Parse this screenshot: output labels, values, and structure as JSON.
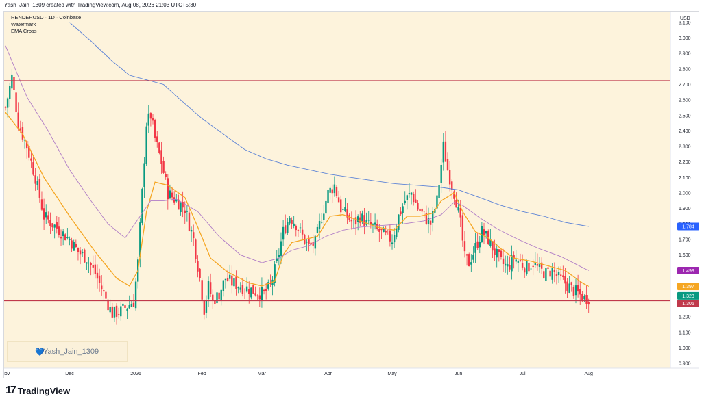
{
  "header": {
    "created_line": "Yash_Jain_1309 created with TradingView.com, Aug 08, 2026 21:03 UTC+5:30"
  },
  "legend": {
    "symbol_line": "RENDERUSD · 1D · Coinbase",
    "watermark_label": "Watermark",
    "indicator_label": "EMA Cross"
  },
  "badge": {
    "heart_icon": "heart-icon",
    "text": "Yash_Jain_1309"
  },
  "footer": {
    "logo_icon": "tradingview-logo-icon",
    "brand": "TradingView"
  },
  "colors": {
    "background": "#fdf3dc",
    "up": "#089981",
    "down": "#f23645",
    "ema_fast": "#f5a623",
    "ema_mid": "#b07cc6",
    "ema_slow": "#5b82d6",
    "hline": "#c0394b"
  },
  "chart_data": {
    "type": "candlestick",
    "currency_label": "USD",
    "ylim": [
      0.87,
      3.17
    ],
    "y_ticks": [
      "3.100",
      "3.000",
      "2.900",
      "2.800",
      "2.700",
      "2.600",
      "2.500",
      "2.400",
      "2.300",
      "2.200",
      "2.100",
      "2.000",
      "1.900",
      "1.800",
      "1.700",
      "1.600",
      "1.500",
      "1.400",
      "1.300",
      "1.200",
      "1.100",
      "1.000",
      "0.900"
    ],
    "x_ticks": [
      {
        "label": "Nov",
        "day": 0
      },
      {
        "label": "Dec",
        "day": 30
      },
      {
        "label": "2026",
        "day": 61
      },
      {
        "label": "Feb",
        "day": 92
      },
      {
        "label": "Mar",
        "day": 120
      },
      {
        "label": "Apr",
        "day": 151
      },
      {
        "label": "May",
        "day": 181
      },
      {
        "label": "Jun",
        "day": 212
      },
      {
        "label": "Jul",
        "day": 242
      },
      {
        "label": "Aug",
        "day": 273
      }
    ],
    "horizontal_lines": [
      {
        "value": 2.724,
        "label": "2.724",
        "color": "#c0394b"
      },
      {
        "value": 1.305,
        "label": "1.305",
        "color": "#c0394b"
      }
    ],
    "price_tags": [
      {
        "value": 1.784,
        "label": "1.784",
        "color": "#2962ff"
      },
      {
        "value": 1.499,
        "label": "1.499",
        "color": "#9c27b0"
      },
      {
        "value": 1.397,
        "label": "1.397",
        "color": "#f5a623"
      },
      {
        "value": 1.323,
        "label": "1.323",
        "color": "#089981"
      },
      {
        "value": 1.305,
        "label": "1.305",
        "color": "#c0394b"
      }
    ],
    "close_keypoints": [
      [
        0,
        2.55
      ],
      [
        3,
        2.75
      ],
      [
        6,
        2.45
      ],
      [
        10,
        2.3
      ],
      [
        14,
        2.1
      ],
      [
        18,
        1.85
      ],
      [
        22,
        1.8
      ],
      [
        26,
        1.75
      ],
      [
        30,
        1.7
      ],
      [
        34,
        1.62
      ],
      [
        38,
        1.58
      ],
      [
        42,
        1.48
      ],
      [
        46,
        1.35
      ],
      [
        50,
        1.22
      ],
      [
        54,
        1.24
      ],
      [
        58,
        1.28
      ],
      [
        60,
        1.3
      ],
      [
        62,
        1.55
      ],
      [
        64,
        2.0
      ],
      [
        66,
        2.45
      ],
      [
        68,
        2.5
      ],
      [
        70,
        2.35
      ],
      [
        73,
        2.2
      ],
      [
        76,
        2.0
      ],
      [
        80,
        1.95
      ],
      [
        84,
        1.9
      ],
      [
        88,
        1.7
      ],
      [
        91,
        1.45
      ],
      [
        93,
        1.25
      ],
      [
        95,
        1.4
      ],
      [
        97,
        1.3
      ],
      [
        100,
        1.35
      ],
      [
        103,
        1.45
      ],
      [
        106,
        1.42
      ],
      [
        110,
        1.4
      ],
      [
        114,
        1.38
      ],
      [
        118,
        1.36
      ],
      [
        121,
        1.35
      ],
      [
        124,
        1.4
      ],
      [
        127,
        1.55
      ],
      [
        130,
        1.75
      ],
      [
        133,
        1.85
      ],
      [
        136,
        1.8
      ],
      [
        139,
        1.72
      ],
      [
        142,
        1.65
      ],
      [
        145,
        1.68
      ],
      [
        148,
        1.85
      ],
      [
        151,
        2.0
      ],
      [
        154,
        2.05
      ],
      [
        157,
        1.9
      ],
      [
        160,
        1.85
      ],
      [
        163,
        1.8
      ],
      [
        166,
        1.85
      ],
      [
        169,
        1.8
      ],
      [
        172,
        1.78
      ],
      [
        175,
        1.75
      ],
      [
        178,
        1.72
      ],
      [
        181,
        1.7
      ],
      [
        184,
        1.85
      ],
      [
        187,
        1.95
      ],
      [
        190,
        2.0
      ],
      [
        193,
        1.9
      ],
      [
        196,
        1.85
      ],
      [
        199,
        1.8
      ],
      [
        202,
        1.95
      ],
      [
        205,
        2.3
      ],
      [
        207,
        2.15
      ],
      [
        209,
        2.05
      ],
      [
        211,
        1.95
      ],
      [
        213,
        1.8
      ],
      [
        215,
        1.58
      ],
      [
        217,
        1.55
      ],
      [
        220,
        1.65
      ],
      [
        223,
        1.75
      ],
      [
        226,
        1.7
      ],
      [
        229,
        1.62
      ],
      [
        232,
        1.55
      ],
      [
        235,
        1.52
      ],
      [
        238,
        1.58
      ],
      [
        241,
        1.55
      ],
      [
        244,
        1.52
      ],
      [
        247,
        1.55
      ],
      [
        250,
        1.5
      ],
      [
        253,
        1.48
      ],
      [
        256,
        1.5
      ],
      [
        259,
        1.45
      ],
      [
        262,
        1.42
      ],
      [
        265,
        1.38
      ],
      [
        268,
        1.35
      ],
      [
        271,
        1.32
      ],
      [
        273,
        1.323
      ]
    ],
    "series": [
      {
        "name": "EMA fast",
        "color": "#f5a623",
        "points": [
          [
            0,
            2.52
          ],
          [
            8,
            2.38
          ],
          [
            18,
            2.1
          ],
          [
            30,
            1.85
          ],
          [
            42,
            1.62
          ],
          [
            52,
            1.45
          ],
          [
            58,
            1.4
          ],
          [
            62,
            1.5
          ],
          [
            66,
            1.88
          ],
          [
            70,
            2.07
          ],
          [
            76,
            2.05
          ],
          [
            84,
            1.97
          ],
          [
            90,
            1.78
          ],
          [
            96,
            1.58
          ],
          [
            104,
            1.49
          ],
          [
            114,
            1.42
          ],
          [
            120,
            1.4
          ],
          [
            126,
            1.43
          ],
          [
            130,
            1.6
          ],
          [
            134,
            1.68
          ],
          [
            140,
            1.7
          ],
          [
            146,
            1.72
          ],
          [
            152,
            1.85
          ],
          [
            158,
            1.86
          ],
          [
            166,
            1.82
          ],
          [
            174,
            1.78
          ],
          [
            182,
            1.76
          ],
          [
            188,
            1.85
          ],
          [
            194,
            1.85
          ],
          [
            200,
            1.87
          ],
          [
            204,
            1.95
          ],
          [
            210,
            2.0
          ],
          [
            214,
            1.88
          ],
          [
            220,
            1.75
          ],
          [
            226,
            1.71
          ],
          [
            232,
            1.64
          ],
          [
            238,
            1.58
          ],
          [
            246,
            1.56
          ],
          [
            254,
            1.53
          ],
          [
            262,
            1.5
          ],
          [
            270,
            1.42
          ],
          [
            273,
            1.397
          ]
        ]
      },
      {
        "name": "EMA mid",
        "color": "#b07cc6",
        "points": [
          [
            0,
            2.95
          ],
          [
            10,
            2.62
          ],
          [
            20,
            2.4
          ],
          [
            30,
            2.15
          ],
          [
            40,
            1.95
          ],
          [
            48,
            1.8
          ],
          [
            56,
            1.71
          ],
          [
            62,
            1.83
          ],
          [
            68,
            1.95
          ],
          [
            74,
            1.95
          ],
          [
            80,
            1.96
          ],
          [
            90,
            1.88
          ],
          [
            100,
            1.72
          ],
          [
            110,
            1.6
          ],
          [
            120,
            1.55
          ],
          [
            128,
            1.58
          ],
          [
            134,
            1.63
          ],
          [
            142,
            1.66
          ],
          [
            150,
            1.72
          ],
          [
            158,
            1.76
          ],
          [
            166,
            1.78
          ],
          [
            176,
            1.79
          ],
          [
            186,
            1.8
          ],
          [
            196,
            1.82
          ],
          [
            204,
            1.86
          ],
          [
            210,
            1.94
          ],
          [
            214,
            1.92
          ],
          [
            222,
            1.84
          ],
          [
            230,
            1.77
          ],
          [
            240,
            1.7
          ],
          [
            250,
            1.64
          ],
          [
            260,
            1.59
          ],
          [
            270,
            1.52
          ],
          [
            273,
            1.499
          ]
        ]
      },
      {
        "name": "EMA slow",
        "color": "#5b82d6",
        "points": [
          [
            30,
            3.1
          ],
          [
            40,
            2.98
          ],
          [
            50,
            2.85
          ],
          [
            58,
            2.76
          ],
          [
            66,
            2.73
          ],
          [
            74,
            2.7
          ],
          [
            82,
            2.6
          ],
          [
            92,
            2.48
          ],
          [
            102,
            2.38
          ],
          [
            112,
            2.28
          ],
          [
            122,
            2.22
          ],
          [
            132,
            2.18
          ],
          [
            142,
            2.15
          ],
          [
            152,
            2.12
          ],
          [
            162,
            2.1
          ],
          [
            172,
            2.08
          ],
          [
            182,
            2.06
          ],
          [
            192,
            2.05
          ],
          [
            202,
            2.04
          ],
          [
            212,
            2.02
          ],
          [
            222,
            1.97
          ],
          [
            232,
            1.92
          ],
          [
            242,
            1.88
          ],
          [
            252,
            1.85
          ],
          [
            262,
            1.81
          ],
          [
            273,
            1.784
          ]
        ]
      }
    ]
  }
}
